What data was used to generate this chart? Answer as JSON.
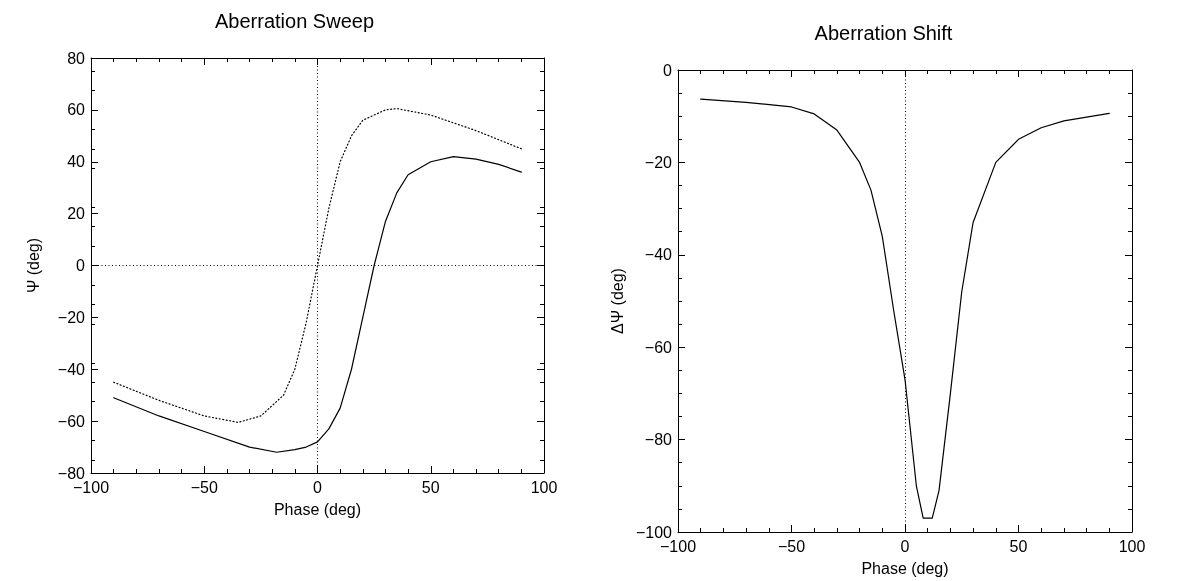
{
  "chart_data": [
    {
      "type": "line",
      "title": "Aberration Sweep",
      "xlabel": "Phase (deg)",
      "ylabel": "Ψ (deg)",
      "xlim": [
        -100,
        100
      ],
      "xticks": [
        -100,
        -50,
        0,
        50,
        100
      ],
      "ylim": [
        -80,
        80
      ],
      "yticks": [
        -80,
        -60,
        -40,
        -20,
        0,
        20,
        40,
        60,
        80
      ],
      "grid": false,
      "marker": "none",
      "series": [
        {
          "color": "#000000",
          "line_style": "solid",
          "x": [
            -90,
            -70,
            -50,
            -30,
            -18,
            -10,
            -5,
            0,
            5,
            10,
            15,
            20,
            25,
            30,
            35,
            40,
            50,
            60,
            70,
            80,
            90
          ],
          "values": [
            -51,
            -58,
            -64,
            -70,
            -72,
            -71,
            -70,
            -68,
            -63,
            -55,
            -40,
            -20,
            0,
            17,
            28,
            35,
            40,
            42,
            41,
            39,
            36
          ]
        },
        {
          "color": "#000000",
          "line_style": "dotted",
          "x": [
            -90,
            -70,
            -50,
            -35,
            -25,
            -15,
            -10,
            -5,
            0,
            5,
            10,
            15,
            20,
            30,
            35,
            50,
            70,
            90
          ],
          "values": [
            -45,
            -52,
            -58,
            -60.5,
            -58,
            -50,
            -40,
            -22,
            0,
            22,
            40,
            50,
            56,
            60,
            60.5,
            58,
            52,
            45
          ]
        }
      ],
      "ref_lines": [
        {
          "axis": "x",
          "value": 0,
          "color": "#000000",
          "line_style": "dotted"
        },
        {
          "axis": "y",
          "value": 0,
          "color": "#000000",
          "line_style": "dotted"
        }
      ]
    },
    {
      "type": "line",
      "title": "Aberration Shift",
      "xlabel": "Phase (deg)",
      "ylabel": "ΔΨ (deg)",
      "xlim": [
        -100,
        100
      ],
      "xticks": [
        -100,
        -50,
        0,
        50,
        100
      ],
      "ylim": [
        -100,
        0
      ],
      "yticks": [
        -100,
        -80,
        -60,
        -40,
        -20,
        0
      ],
      "grid": false,
      "marker": "none",
      "series": [
        {
          "color": "#000000",
          "line_style": "solid",
          "x": [
            -90,
            -70,
            -50,
            -40,
            -30,
            -20,
            -15,
            -10,
            -5,
            0,
            5,
            8,
            12,
            15,
            20,
            25,
            30,
            40,
            50,
            60,
            70,
            90
          ],
          "values": [
            -6.3,
            -7,
            -8,
            -9.5,
            -13,
            -20,
            -26,
            -36,
            -52,
            -67,
            -90,
            -97,
            -97,
            -91,
            -70,
            -48,
            -33,
            -20,
            -15,
            -12.5,
            -11,
            -9.4
          ]
        }
      ],
      "ref_lines": [
        {
          "axis": "x",
          "value": 0,
          "color": "#000000",
          "line_style": "dotted"
        }
      ]
    }
  ]
}
